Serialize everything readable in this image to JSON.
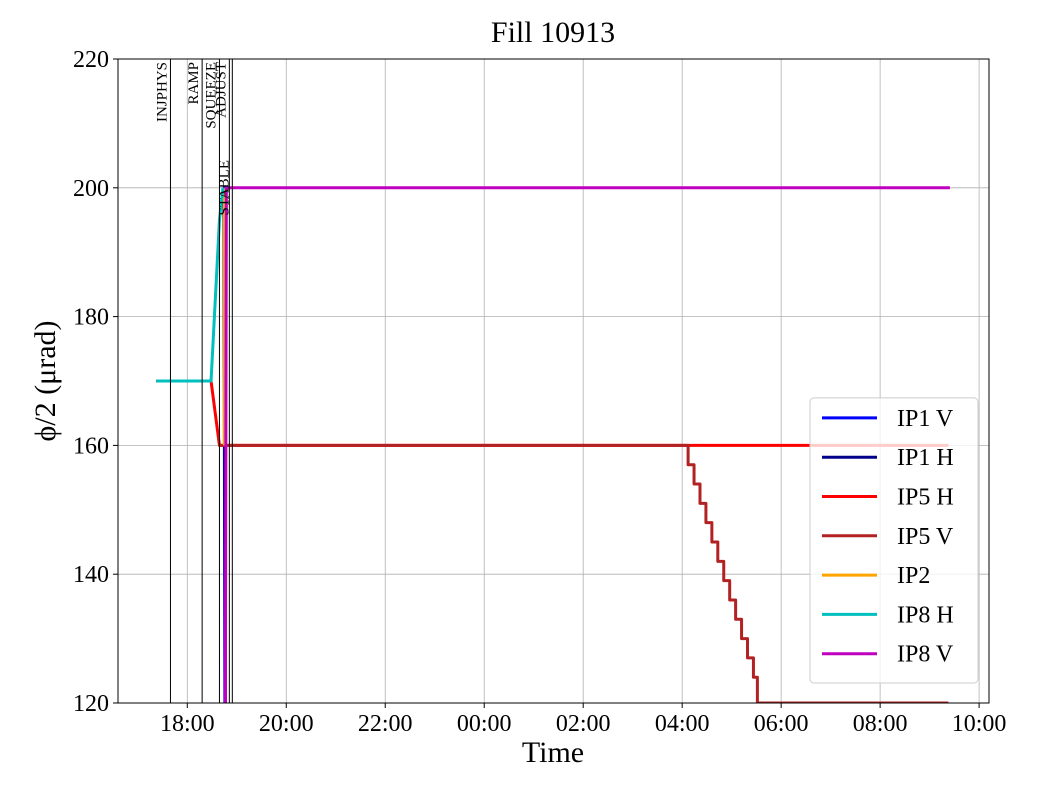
{
  "chart_data": {
    "type": "line",
    "title": "Fill 10913",
    "xlabel": "Time",
    "ylabel": "ϕ/2 (μrad)",
    "xlim": [
      16.6,
      34.2
    ],
    "ylim": [
      120,
      220
    ],
    "xticks": [
      {
        "value": 18,
        "label": "18:00"
      },
      {
        "value": 20,
        "label": "20:00"
      },
      {
        "value": 22,
        "label": "22:00"
      },
      {
        "value": 24,
        "label": "00:00"
      },
      {
        "value": 26,
        "label": "02:00"
      },
      {
        "value": 28,
        "label": "04:00"
      },
      {
        "value": 30,
        "label": "06:00"
      },
      {
        "value": 32,
        "label": "08:00"
      },
      {
        "value": 34,
        "label": "10:00"
      }
    ],
    "yticks": [
      120,
      140,
      160,
      180,
      200,
      220
    ],
    "grid": true,
    "legend": "lower right",
    "annotations": [
      {
        "x": 17.66,
        "label": "INJPHYS"
      },
      {
        "x": 18.3,
        "label": "RAMP"
      },
      {
        "x": 18.65,
        "label": "SQUEEZE"
      },
      {
        "x": 18.85,
        "label": "ADJUST"
      },
      {
        "x": 18.91,
        "label": "STABLE"
      }
    ],
    "series": [
      {
        "name": "IP1 V",
        "color": "#0000ff",
        "x": [
          18.72,
          18.74,
          18.76
        ],
        "values": [
          200,
          200,
          120
        ]
      },
      {
        "name": "IP1 H",
        "color": "#00008b",
        "x": [
          18.74,
          18.77
        ],
        "values": [
          200,
          120
        ]
      },
      {
        "name": "IP5 H",
        "color": "#ff0000",
        "x": [
          17.37,
          18.48,
          18.65,
          33.38
        ],
        "values": [
          170,
          170,
          160,
          160
        ]
      },
      {
        "name": "IP5 V",
        "color": "#b22222",
        "x": [
          18.65,
          28.12,
          28.12,
          28.24,
          28.24,
          28.36,
          28.36,
          28.48,
          28.48,
          28.6,
          28.6,
          28.72,
          28.72,
          28.84,
          28.84,
          28.96,
          28.96,
          29.08,
          29.08,
          29.2,
          29.2,
          29.32,
          29.32,
          29.44,
          29.44,
          29.52,
          29.52,
          33.38
        ],
        "values": [
          160,
          160,
          157,
          157,
          154,
          154,
          151,
          151,
          148,
          148,
          145,
          145,
          142,
          142,
          139,
          139,
          136,
          136,
          133,
          133,
          130,
          130,
          127,
          127,
          124,
          124,
          120,
          120
        ]
      },
      {
        "name": "IP2",
        "color": "#ffa500",
        "x": [
          18.75,
          18.75
        ],
        "values": [
          160,
          200
        ]
      },
      {
        "name": "IP8 H",
        "color": "#00bfbf",
        "x": [
          17.37,
          18.48,
          18.65,
          18.72
        ],
        "values": [
          170,
          170,
          195,
          200
        ]
      },
      {
        "name": "IP8 V",
        "color": "#bf00bf",
        "x": [
          18.77,
          18.79,
          33.41
        ],
        "values": [
          120,
          200,
          200
        ]
      }
    ]
  }
}
